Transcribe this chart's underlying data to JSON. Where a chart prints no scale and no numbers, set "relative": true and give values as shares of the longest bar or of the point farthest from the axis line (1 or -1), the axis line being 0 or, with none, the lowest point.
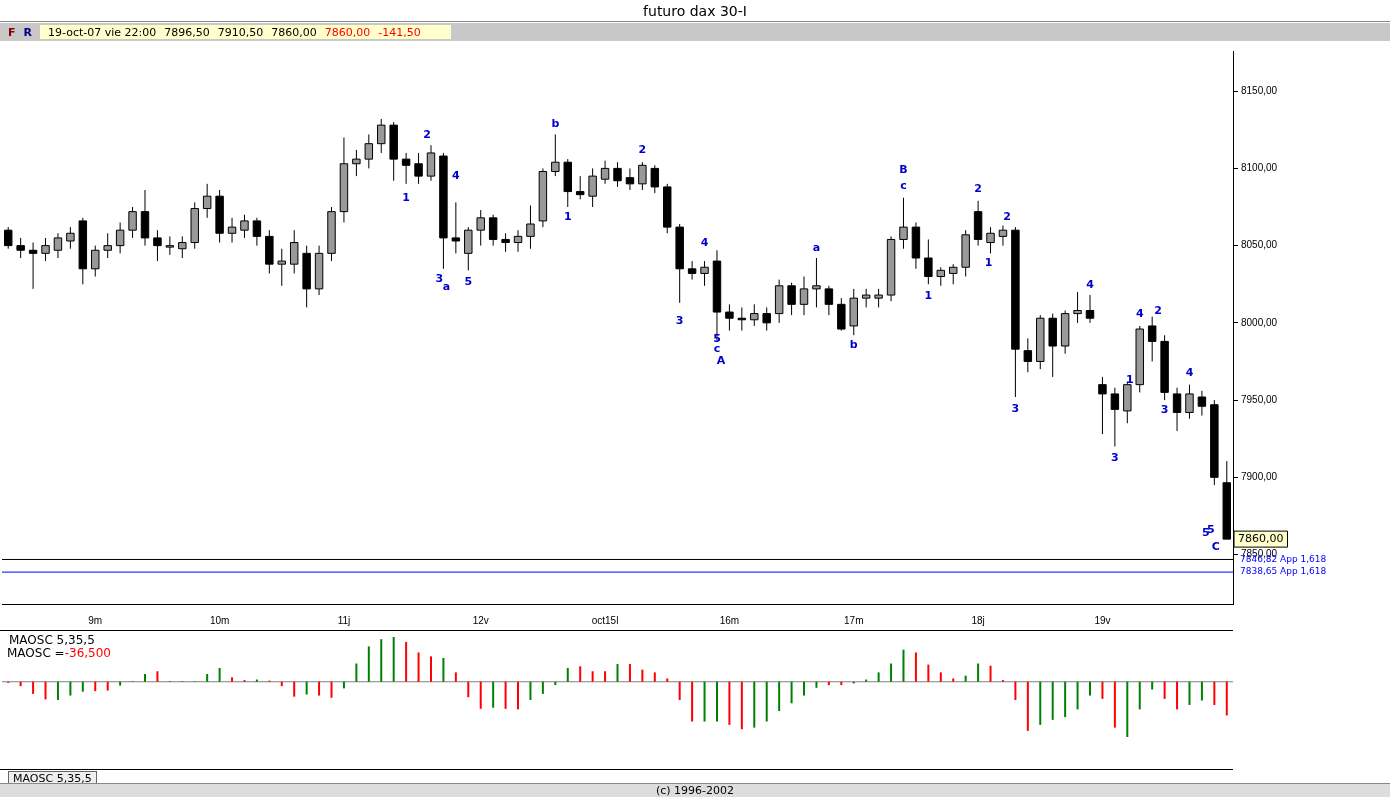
{
  "chart_data": [
    {
      "type": "candlestick",
      "title": "futuro dax 30-I",
      "categories": [
        null,
        null,
        null,
        null,
        null,
        null,
        null,
        "9m",
        null,
        null,
        null,
        null,
        null,
        null,
        null,
        null,
        null,
        "10m",
        null,
        null,
        null,
        null,
        null,
        null,
        null,
        null,
        null,
        "11j",
        null,
        null,
        null,
        null,
        null,
        null,
        null,
        null,
        null,
        null,
        "12v",
        null,
        null,
        null,
        null,
        null,
        null,
        null,
        null,
        null,
        "oct15l",
        null,
        null,
        null,
        null,
        null,
        null,
        null,
        null,
        null,
        "16m",
        null,
        null,
        null,
        null,
        null,
        null,
        null,
        null,
        null,
        "17m",
        null,
        null,
        null,
        null,
        null,
        null,
        null,
        null,
        null,
        "18j",
        null,
        null,
        null,
        null,
        null,
        null,
        null,
        null,
        null,
        "19v",
        null,
        null,
        null,
        null,
        null,
        null,
        null,
        null,
        null,
        null
      ],
      "ohlc": [
        [
          8060,
          8062,
          8048,
          8050
        ],
        [
          8050,
          8055,
          8042,
          8047
        ],
        [
          8047,
          8052,
          8022,
          8045
        ],
        [
          8045,
          8055,
          8040,
          8050
        ],
        [
          8047,
          8058,
          8042,
          8055
        ],
        [
          8053,
          8062,
          8048,
          8058
        ],
        [
          8066,
          8068,
          8025,
          8035
        ],
        [
          8035,
          8050,
          8030,
          8047
        ],
        [
          8047,
          8058,
          8042,
          8050
        ],
        [
          8050,
          8065,
          8045,
          8060
        ],
        [
          8060,
          8075,
          8055,
          8072
        ],
        [
          8072,
          8086,
          8050,
          8055
        ],
        [
          8055,
          8060,
          8040,
          8050
        ],
        [
          8050,
          8056,
          8044,
          8050
        ],
        [
          8048,
          8056,
          8042,
          8052
        ],
        [
          8052,
          8078,
          8048,
          8074
        ],
        [
          8074,
          8090,
          8068,
          8082
        ],
        [
          8082,
          8086,
          8052,
          8058
        ],
        [
          8058,
          8068,
          8052,
          8062
        ],
        [
          8060,
          8070,
          8055,
          8066
        ],
        [
          8066,
          8068,
          8050,
          8056
        ],
        [
          8056,
          8060,
          8032,
          8038
        ],
        [
          8038,
          8048,
          8024,
          8040
        ],
        [
          8038,
          8060,
          8032,
          8052
        ],
        [
          8045,
          8050,
          8010,
          8022
        ],
        [
          8022,
          8050,
          8018,
          8045
        ],
        [
          8045,
          8075,
          8040,
          8072
        ],
        [
          8072,
          8120,
          8065,
          8103
        ],
        [
          8103,
          8112,
          8095,
          8106
        ],
        [
          8106,
          8122,
          8100,
          8116
        ],
        [
          8116,
          8132,
          8110,
          8128
        ],
        [
          8128,
          8130,
          8092,
          8106
        ],
        [
          8106,
          8110,
          8090,
          8102
        ],
        [
          8103,
          8110,
          8090,
          8095
        ],
        [
          8095,
          8115,
          8092,
          8110
        ],
        [
          8108,
          8110,
          8035,
          8055
        ],
        [
          8055,
          8078,
          8045,
          8053
        ],
        [
          8045,
          8062,
          8034,
          8060
        ],
        [
          8060,
          8073,
          8050,
          8068
        ],
        [
          8068,
          8070,
          8050,
          8054
        ],
        [
          8054,
          8058,
          8046,
          8052
        ],
        [
          8052,
          8060,
          8046,
          8056
        ],
        [
          8056,
          8076,
          8048,
          8064
        ],
        [
          8066,
          8100,
          8062,
          8098
        ],
        [
          8098,
          8122,
          8095,
          8104
        ],
        [
          8104,
          8106,
          8075,
          8085
        ],
        [
          8085,
          8095,
          8080,
          8083
        ],
        [
          8082,
          8100,
          8075,
          8095
        ],
        [
          8093,
          8105,
          8090,
          8100
        ],
        [
          8100,
          8104,
          8088,
          8092
        ],
        [
          8094,
          8100,
          8086,
          8090
        ],
        [
          8090,
          8104,
          8086,
          8102
        ],
        [
          8100,
          8102,
          8084,
          8088
        ],
        [
          8088,
          8090,
          8058,
          8062
        ],
        [
          8062,
          8064,
          8013,
          8035
        ],
        [
          8035,
          8040,
          8028,
          8032
        ],
        [
          8032,
          8040,
          8024,
          8036
        ],
        [
          8040,
          8047,
          7988,
          8007
        ],
        [
          8007,
          8012,
          7995,
          8003
        ],
        [
          8003,
          8010,
          7995,
          8002
        ],
        [
          8002,
          8012,
          7998,
          8006
        ],
        [
          8006,
          8010,
          7995,
          8000
        ],
        [
          8006,
          8028,
          8000,
          8024
        ],
        [
          8024,
          8026,
          8005,
          8012
        ],
        [
          8012,
          8030,
          8005,
          8022
        ],
        [
          8022,
          8042,
          8010,
          8024
        ],
        [
          8022,
          8024,
          8005,
          8012
        ],
        [
          8012,
          8016,
          7995,
          7996
        ],
        [
          7998,
          8022,
          7992,
          8016
        ],
        [
          8016,
          8022,
          8010,
          8018
        ],
        [
          8016,
          8022,
          8010,
          8018
        ],
        [
          8018,
          8056,
          8014,
          8054
        ],
        [
          8054,
          8081,
          8048,
          8062
        ],
        [
          8062,
          8065,
          8035,
          8042
        ],
        [
          8042,
          8054,
          8025,
          8030
        ],
        [
          8030,
          8036,
          8024,
          8034
        ],
        [
          8032,
          8038,
          8025,
          8036
        ],
        [
          8036,
          8060,
          8030,
          8057
        ],
        [
          8072,
          8079,
          8050,
          8054
        ],
        [
          8052,
          8062,
          8045,
          8058
        ],
        [
          8056,
          8063,
          8050,
          8060
        ],
        [
          8060,
          8062,
          7952,
          7983
        ],
        [
          7982,
          7990,
          7968,
          7975
        ],
        [
          7975,
          8005,
          7970,
          8003
        ],
        [
          8003,
          8006,
          7965,
          7985
        ],
        [
          7985,
          8008,
          7980,
          8006
        ],
        [
          8006,
          8020,
          8000,
          8008
        ],
        [
          8008,
          8018,
          8000,
          8003
        ],
        [
          7960,
          7965,
          7928,
          7954
        ],
        [
          7954,
          7958,
          7920,
          7944
        ],
        [
          7943,
          7962,
          7935,
          7960
        ],
        [
          7960,
          7998,
          7955,
          7996
        ],
        [
          7998,
          8004,
          7975,
          7988
        ],
        [
          7988,
          7992,
          7950,
          7955
        ],
        [
          7954,
          7958,
          7930,
          7942
        ],
        [
          7942,
          7960,
          7938,
          7954
        ],
        [
          7952,
          7956,
          7940,
          7946
        ],
        [
          7947,
          7950,
          7895,
          7900
        ],
        [
          7896.5,
          7910.5,
          7860,
          7860
        ]
      ],
      "ylim": [
        7818,
        8176
      ],
      "yticks": [
        {
          "value": 7850,
          "label": "7850,00"
        },
        {
          "value": 7900,
          "label": "7900,00"
        },
        {
          "value": 7950,
          "label": "7950,00"
        },
        {
          "value": 8000,
          "label": "8000,00"
        },
        {
          "value": 8050,
          "label": "8050,00"
        },
        {
          "value": 8100,
          "label": "8100,00"
        },
        {
          "value": 8150,
          "label": "8150,00"
        }
      ],
      "ref_lines": [
        {
          "axis": "y",
          "value": 7846.82,
          "label": "7846,82 App 1,618",
          "color": "#000000"
        },
        {
          "axis": "y",
          "value": 7838.65,
          "label": "7838,65 App 1,618",
          "color": "#0000ff"
        }
      ],
      "annotations": [
        "F",
        "R",
        "19-oct-07 vie 22:00",
        "7896,50",
        "7910,50",
        "7860,00",
        "7860,00",
        "-141,50",
        "7860,00",
        "1",
        "2",
        "3",
        "a",
        "4",
        "5",
        "b",
        "1",
        "2",
        "3",
        "4",
        "5",
        "c",
        "A",
        "a",
        "b",
        "B",
        "c",
        "1",
        "2",
        "1",
        "2",
        "3",
        "4",
        "3",
        "1",
        "4",
        "2",
        "3",
        "4",
        "5",
        "5",
        "C"
      ]
    },
    {
      "type": "bar",
      "title": "MAOSC 5,35,5",
      "relative": true,
      "categories": [
        null,
        null,
        null,
        null,
        null,
        null,
        null,
        null,
        null,
        null,
        null,
        null,
        null,
        null,
        null,
        null,
        null,
        null,
        null,
        null,
        null,
        null,
        null,
        null,
        null,
        null,
        null,
        null,
        null,
        null,
        null,
        null,
        null,
        null,
        null,
        null,
        null,
        null,
        null,
        null,
        null,
        null,
        null,
        null,
        null,
        null,
        null,
        null,
        null,
        null,
        null,
        null,
        null,
        null,
        null,
        null,
        null,
        null,
        null,
        null,
        null,
        null,
        null,
        null,
        null,
        null,
        null,
        null,
        null,
        null,
        null,
        null,
        null,
        null,
        null,
        null,
        null,
        null,
        null,
        null,
        null,
        null,
        null,
        null,
        null,
        null,
        null,
        null,
        null,
        null,
        null,
        null,
        null,
        null,
        null,
        null,
        null,
        null,
        null
      ],
      "values": [
        -0.02,
        -0.08,
        -0.22,
        -0.32,
        -0.33,
        -0.25,
        -0.18,
        -0.17,
        -0.16,
        -0.07,
        0.01,
        0.14,
        0.19,
        0.01,
        0.01,
        0.01,
        0.14,
        0.25,
        0.08,
        0.03,
        0.04,
        0.02,
        -0.08,
        -0.27,
        -0.23,
        -0.25,
        -0.29,
        -0.12,
        0.33,
        0.64,
        0.77,
        0.81,
        0.72,
        0.53,
        0.46,
        0.43,
        0.17,
        -0.28,
        -0.49,
        -0.47,
        -0.49,
        -0.5,
        -0.33,
        -0.22,
        -0.06,
        0.25,
        0.28,
        0.19,
        0.19,
        0.32,
        0.32,
        0.22,
        0.17,
        0.06,
        -0.33,
        -0.72,
        -0.72,
        -0.72,
        -0.78,
        -0.86,
        -0.83,
        -0.72,
        -0.53,
        -0.39,
        -0.25,
        -0.11,
        -0.06,
        -0.06,
        -0.03,
        0.04,
        0.17,
        0.33,
        0.58,
        0.53,
        0.31,
        0.17,
        0.06,
        0.11,
        0.33,
        0.29,
        0.03,
        -0.33,
        -0.89,
        -0.78,
        -0.69,
        -0.64,
        -0.5,
        -0.25,
        -0.31,
        -0.83,
        -1,
        -0.5,
        -0.14,
        -0.31,
        -0.5,
        -0.42,
        -0.34,
        -0.42,
        -0.61
      ],
      "colors": [
        "#ff0000",
        "#ff0000",
        "#ff0000",
        "#ff0000",
        "#008000",
        "#008000",
        "#008000",
        "#ff0000",
        "#ff0000",
        "#008000",
        "#008000",
        "#008000",
        "#ff0000",
        "#ff0000",
        "#ff0000",
        "#008000",
        "#008000",
        "#008000",
        "#ff0000",
        "#ff0000",
        "#008000",
        "#ff0000",
        "#ff0000",
        "#ff0000",
        "#008000",
        "#ff0000",
        "#ff0000",
        "#008000",
        "#008000",
        "#008000",
        "#008000",
        "#008000",
        "#ff0000",
        "#ff0000",
        "#ff0000",
        "#008000",
        "#ff0000",
        "#ff0000",
        "#ff0000",
        "#008000",
        "#ff0000",
        "#ff0000",
        "#008000",
        "#008000",
        "#008000",
        "#008000",
        "#ff0000",
        "#ff0000",
        "#ff0000",
        "#008000",
        "#ff0000",
        "#ff0000",
        "#ff0000",
        "#ff0000",
        "#ff0000",
        "#ff0000",
        "#008000",
        "#008000",
        "#ff0000",
        "#ff0000",
        "#008000",
        "#008000",
        "#008000",
        "#008000",
        "#008000",
        "#008000",
        "#ff0000",
        "#ff0000",
        "#008000",
        "#008000",
        "#008000",
        "#008000",
        "#008000",
        "#ff0000",
        "#ff0000",
        "#ff0000",
        "#ff0000",
        "#008000",
        "#008000",
        "#ff0000",
        "#ff0000",
        "#ff0000",
        "#ff0000",
        "#008000",
        "#008000",
        "#008000",
        "#008000",
        "#008000",
        "#ff0000",
        "#ff0000",
        "#008000",
        "#008000",
        "#008000",
        "#ff0000",
        "#ff0000",
        "#008000",
        "#008000",
        "#ff0000",
        "#ff0000"
      ],
      "annotations": [
        "MAOSC =",
        "-36,500",
        "MAOSC 5,35,5",
        "(c) 1996-2002"
      ]
    }
  ]
}
